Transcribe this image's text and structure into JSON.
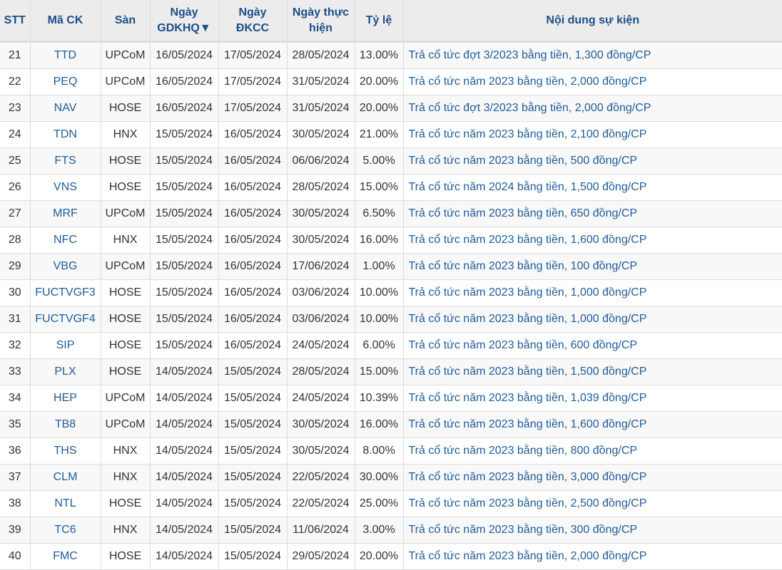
{
  "headers": {
    "stt": "STT",
    "code": "Mã CK",
    "exchange": "Sàn",
    "exdate_line1": "Ngày",
    "exdate_line2": "GDKHQ▼",
    "record_line1": "Ngày",
    "record_line2": "ĐKCC",
    "pay_line1": "Ngày thực",
    "pay_line2": "hiện",
    "ratio": "Tỷ lệ",
    "content": "Nội dung sự kiện"
  },
  "rows": [
    {
      "stt": "21",
      "code": "TTD",
      "exchange": "UPCoM",
      "exdate": "16/05/2024",
      "record": "17/05/2024",
      "pay": "28/05/2024",
      "ratio": "13.00%",
      "content": "Trả cổ tức đợt 3/2023 bằng tiền, 1,300 đồng/CP"
    },
    {
      "stt": "22",
      "code": "PEQ",
      "exchange": "UPCoM",
      "exdate": "16/05/2024",
      "record": "17/05/2024",
      "pay": "31/05/2024",
      "ratio": "20.00%",
      "content": "Trả cổ tức năm 2023 bằng tiền, 2,000 đồng/CP"
    },
    {
      "stt": "23",
      "code": "NAV",
      "exchange": "HOSE",
      "exdate": "16/05/2024",
      "record": "17/05/2024",
      "pay": "31/05/2024",
      "ratio": "20.00%",
      "content": "Trả cổ tức đợt 3/2023 bằng tiền, 2,000 đồng/CP"
    },
    {
      "stt": "24",
      "code": "TDN",
      "exchange": "HNX",
      "exdate": "15/05/2024",
      "record": "16/05/2024",
      "pay": "30/05/2024",
      "ratio": "21.00%",
      "content": "Trả cổ tức năm 2023 bằng tiền, 2,100 đồng/CP"
    },
    {
      "stt": "25",
      "code": "FTS",
      "exchange": "HOSE",
      "exdate": "15/05/2024",
      "record": "16/05/2024",
      "pay": "06/06/2024",
      "ratio": "5.00%",
      "content": "Trả cổ tức năm 2023 bằng tiền, 500 đồng/CP"
    },
    {
      "stt": "26",
      "code": "VNS",
      "exchange": "HOSE",
      "exdate": "15/05/2024",
      "record": "16/05/2024",
      "pay": "28/05/2024",
      "ratio": "15.00%",
      "content": "Trả cổ tức năm 2024 bằng tiền, 1,500 đồng/CP"
    },
    {
      "stt": "27",
      "code": "MRF",
      "exchange": "UPCoM",
      "exdate": "15/05/2024",
      "record": "16/05/2024",
      "pay": "30/05/2024",
      "ratio": "6.50%",
      "content": "Trả cổ tức năm 2023 bằng tiền, 650 đồng/CP"
    },
    {
      "stt": "28",
      "code": "NFC",
      "exchange": "HNX",
      "exdate": "15/05/2024",
      "record": "16/05/2024",
      "pay": "30/05/2024",
      "ratio": "16.00%",
      "content": "Trả cổ tức năm 2023 bằng tiền, 1,600 đồng/CP"
    },
    {
      "stt": "29",
      "code": "VBG",
      "exchange": "UPCoM",
      "exdate": "15/05/2024",
      "record": "16/05/2024",
      "pay": "17/06/2024",
      "ratio": "1.00%",
      "content": "Trả cổ tức năm 2023 bằng tiền, 100 đồng/CP"
    },
    {
      "stt": "30",
      "code": "FUCTVGF3",
      "exchange": "HOSE",
      "exdate": "15/05/2024",
      "record": "16/05/2024",
      "pay": "03/06/2024",
      "ratio": "10.00%",
      "content": "Trả cổ tức năm 2023 bằng tiền, 1,000 đồng/CP"
    },
    {
      "stt": "31",
      "code": "FUCTVGF4",
      "exchange": "HOSE",
      "exdate": "15/05/2024",
      "record": "16/05/2024",
      "pay": "03/06/2024",
      "ratio": "10.00%",
      "content": "Trả cổ tức năm 2023 bằng tiền, 1,000 đồng/CP"
    },
    {
      "stt": "32",
      "code": "SIP",
      "exchange": "HOSE",
      "exdate": "15/05/2024",
      "record": "16/05/2024",
      "pay": "24/05/2024",
      "ratio": "6.00%",
      "content": "Trả cổ tức năm 2023 bằng tiền, 600 đồng/CP"
    },
    {
      "stt": "33",
      "code": "PLX",
      "exchange": "HOSE",
      "exdate": "14/05/2024",
      "record": "15/05/2024",
      "pay": "28/05/2024",
      "ratio": "15.00%",
      "content": "Trả cổ tức năm 2023 bằng tiền, 1,500 đồng/CP"
    },
    {
      "stt": "34",
      "code": "HEP",
      "exchange": "UPCoM",
      "exdate": "14/05/2024",
      "record": "15/05/2024",
      "pay": "24/05/2024",
      "ratio": "10.39%",
      "content": "Trả cổ tức năm 2023 bằng tiền, 1,039 đồng/CP"
    },
    {
      "stt": "35",
      "code": "TB8",
      "exchange": "UPCoM",
      "exdate": "14/05/2024",
      "record": "15/05/2024",
      "pay": "30/05/2024",
      "ratio": "16.00%",
      "content": "Trả cổ tức năm 2023 bằng tiền, 1,600 đồng/CP"
    },
    {
      "stt": "36",
      "code": "THS",
      "exchange": "HNX",
      "exdate": "14/05/2024",
      "record": "15/05/2024",
      "pay": "30/05/2024",
      "ratio": "8.00%",
      "content": "Trả cổ tức năm 2023 bằng tiền, 800 đồng/CP"
    },
    {
      "stt": "37",
      "code": "CLM",
      "exchange": "HNX",
      "exdate": "14/05/2024",
      "record": "15/05/2024",
      "pay": "22/05/2024",
      "ratio": "30.00%",
      "content": "Trả cổ tức năm 2023 bằng tiền, 3,000 đồng/CP"
    },
    {
      "stt": "38",
      "code": "NTL",
      "exchange": "HOSE",
      "exdate": "14/05/2024",
      "record": "15/05/2024",
      "pay": "22/05/2024",
      "ratio": "25.00%",
      "content": "Trả cổ tức năm 2023 bằng tiền, 2,500 đồng/CP"
    },
    {
      "stt": "39",
      "code": "TC6",
      "exchange": "HNX",
      "exdate": "14/05/2024",
      "record": "15/05/2024",
      "pay": "11/06/2024",
      "ratio": "3.00%",
      "content": "Trả cổ tức năm 2023 bằng tiền, 300 đồng/CP"
    },
    {
      "stt": "40",
      "code": "FMC",
      "exchange": "HOSE",
      "exdate": "14/05/2024",
      "record": "15/05/2024",
      "pay": "29/05/2024",
      "ratio": "20.00%",
      "content": "Trả cổ tức năm 2023 bằng tiền, 2,000 đồng/CP"
    }
  ]
}
